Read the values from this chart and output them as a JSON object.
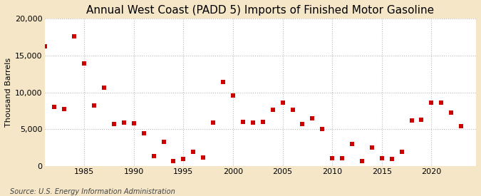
{
  "title": "Annual West Coast (PADD 5) Imports of Finished Motor Gasoline",
  "ylabel": "Thousand Barrels",
  "source": "Source: U.S. Energy Information Administration",
  "background_color": "#f5e6c8",
  "plot_background": "#ffffff",
  "marker_color": "#cc0000",
  "marker_size": 18,
  "ylim": [
    0,
    20000
  ],
  "yticks": [
    0,
    5000,
    10000,
    15000,
    20000
  ],
  "xlim": [
    1981.0,
    2024.5
  ],
  "xticks": [
    1985,
    1990,
    1995,
    2000,
    2005,
    2010,
    2015,
    2020
  ],
  "years": [
    1981,
    1982,
    1983,
    1984,
    1985,
    1986,
    1987,
    1988,
    1989,
    1990,
    1991,
    1992,
    1993,
    1994,
    1995,
    1996,
    1997,
    1998,
    1999,
    2000,
    2001,
    2002,
    2003,
    2004,
    2005,
    2006,
    2007,
    2008,
    2009,
    2010,
    2011,
    2012,
    2013,
    2014,
    2015,
    2016,
    2017,
    2018,
    2019,
    2020,
    2021,
    2022,
    2023
  ],
  "values": [
    16200,
    8000,
    7700,
    17600,
    13900,
    8200,
    10600,
    5700,
    5900,
    5800,
    4500,
    1400,
    3300,
    700,
    1000,
    2000,
    1200,
    5900,
    11400,
    9600,
    6000,
    5900,
    6000,
    7600,
    8600,
    7600,
    5700,
    6500,
    5000,
    1100,
    1100,
    3000,
    700,
    2500,
    1100,
    1000,
    2000,
    6200,
    6300,
    8600,
    8600,
    7300,
    5400
  ],
  "title_fontsize": 11,
  "ylabel_fontsize": 8,
  "tick_fontsize": 8,
  "source_fontsize": 7,
  "grid_color": "#bbbbbb",
  "grid_linestyle": ":",
  "grid_linewidth": 0.8
}
